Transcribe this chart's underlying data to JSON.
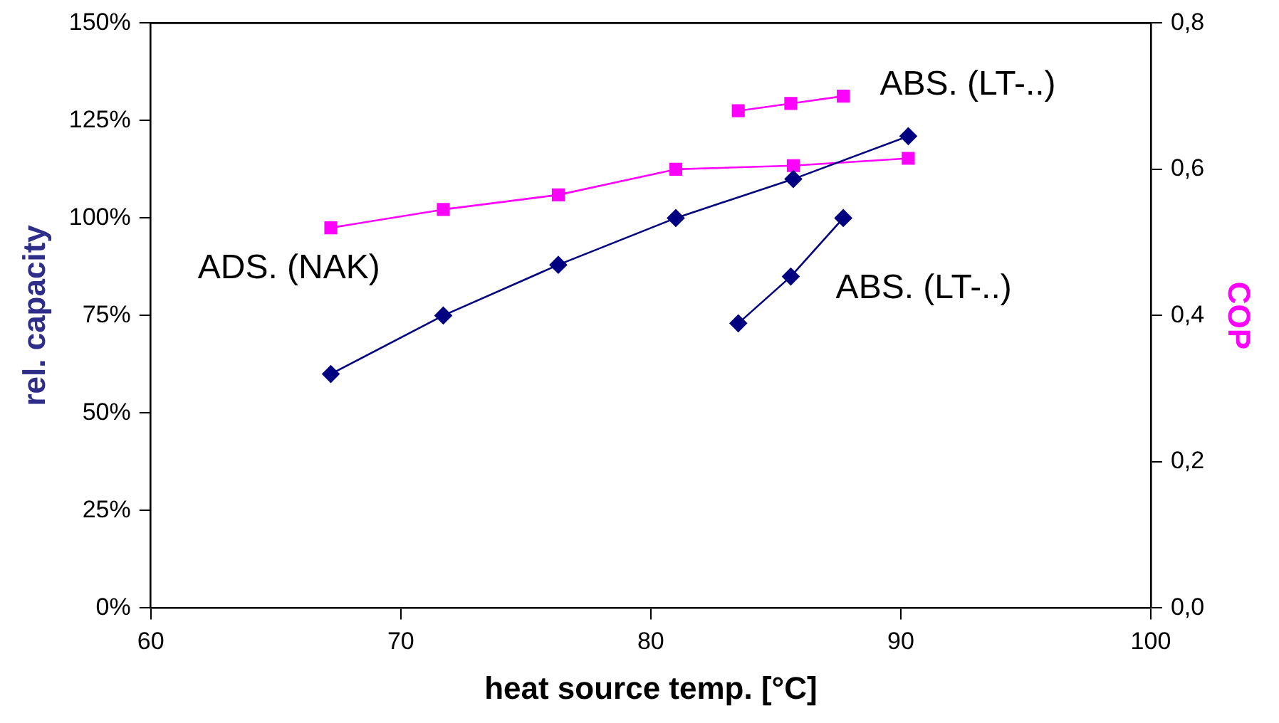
{
  "chart_data": {
    "type": "line",
    "xlabel": "heat source temp. [°C]",
    "ylabel": "rel. capacity",
    "y2label": "COP",
    "xlim": [
      60,
      100
    ],
    "xticks": [
      60,
      70,
      80,
      90,
      100
    ],
    "ylim": [
      0,
      150
    ],
    "yticks": [
      {
        "value": 0,
        "label": "0%"
      },
      {
        "value": 25,
        "label": "25%"
      },
      {
        "value": 50,
        "label": "50%"
      },
      {
        "value": 75,
        "label": "75%"
      },
      {
        "value": 100,
        "label": "100%"
      },
      {
        "value": 125,
        "label": "125%"
      },
      {
        "value": 150,
        "label": "150%"
      }
    ],
    "y2lim": [
      0,
      0.8
    ],
    "y2ticks": [
      {
        "value": 0,
        "label": "0,0"
      },
      {
        "value": 0.2,
        "label": "0,2"
      },
      {
        "value": 0.4,
        "label": "0,4"
      },
      {
        "value": 0.6,
        "label": "0,6"
      },
      {
        "value": 0.8,
        "label": "0,8"
      }
    ],
    "grid": false,
    "legend": false,
    "line_style": "solid",
    "series": [
      {
        "color": "#000080",
        "marker": "diamond",
        "x": [
          67.2,
          71.7,
          76.3,
          81.0,
          85.7,
          90.3
        ],
        "values": [
          60,
          75,
          88,
          100,
          110,
          121
        ]
      },
      {
        "color": "#ff00ff",
        "marker": "square",
        "axis": "y2",
        "x": [
          67.2,
          71.7,
          76.3,
          81.0,
          85.7,
          90.3
        ],
        "values": [
          0.52,
          0.545,
          0.565,
          0.6,
          0.605,
          0.615
        ]
      },
      {
        "color": "#ff00ff",
        "marker": "square",
        "axis": "y2",
        "x": [
          83.5,
          85.6,
          87.7
        ],
        "values": [
          0.68,
          0.69,
          0.7
        ]
      },
      {
        "color": "#000080",
        "marker": "diamond",
        "x": [
          83.5,
          85.6,
          87.7
        ],
        "values": [
          73,
          85,
          100
        ]
      }
    ],
    "annotations": [
      "ADS. (NAK)",
      "ABS. (LT-..)",
      "ABS. (LT-..)"
    ]
  }
}
